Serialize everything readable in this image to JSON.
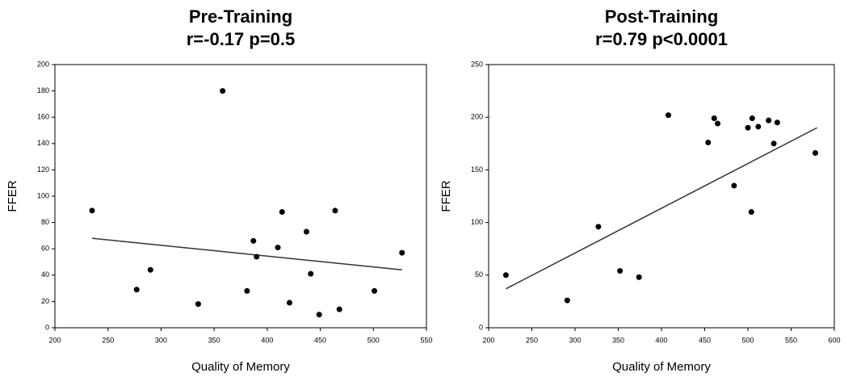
{
  "chart_data": [
    {
      "type": "scatter",
      "title": "Pre-Training",
      "subtitle": "r=-0.17 p=0.5",
      "x_label": "Quality of Memory",
      "y_label": "FFER",
      "xlim": [
        200,
        550
      ],
      "xticks": [
        200,
        250,
        300,
        350,
        400,
        450,
        500,
        550
      ],
      "ylim": [
        0,
        200
      ],
      "yticks": [
        0,
        20,
        40,
        60,
        80,
        100,
        120,
        140,
        160,
        180,
        200
      ],
      "color": "#000000",
      "x": [
        235,
        277,
        290,
        335,
        358,
        381,
        387,
        390,
        410,
        414,
        421,
        437,
        441,
        449,
        464,
        468,
        501,
        527
      ],
      "values": [
        89,
        29,
        44,
        18,
        180,
        28,
        66,
        54,
        61,
        88,
        19,
        73,
        41,
        10,
        89,
        14,
        28,
        57
      ],
      "trend": {
        "x": [
          235,
          527
        ],
        "values": [
          68,
          44
        ]
      }
    },
    {
      "type": "scatter",
      "title": "Post-Training",
      "subtitle": "r=0.79 p<0.0001",
      "x_label": "Quality of Memory",
      "y_label": "FFER",
      "xlim": [
        200,
        600
      ],
      "xticks": [
        200,
        250,
        300,
        350,
        400,
        450,
        500,
        550,
        600
      ],
      "ylim": [
        0,
        250
      ],
      "yticks": [
        0,
        50,
        100,
        150,
        200,
        250
      ],
      "color": "#000000",
      "x": [
        220,
        291,
        327,
        352,
        374,
        408,
        454,
        461,
        465,
        484,
        500,
        504,
        505,
        512,
        524,
        530,
        534,
        578
      ],
      "values": [
        50,
        26,
        96,
        54,
        48,
        202,
        176,
        199,
        194,
        135,
        190,
        110,
        199,
        191,
        197,
        175,
        195,
        166
      ],
      "trend": {
        "x": [
          220,
          580
        ],
        "values": [
          37,
          190
        ]
      }
    }
  ]
}
